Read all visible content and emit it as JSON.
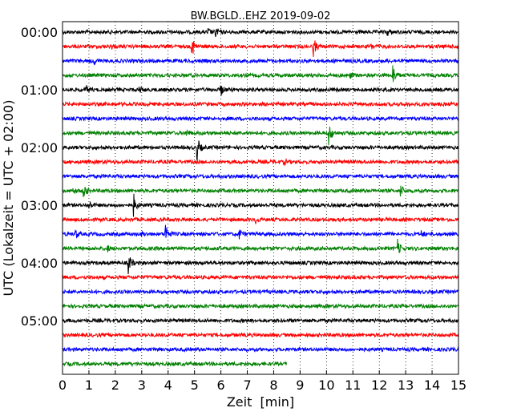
{
  "chart_data": {
    "type": "line",
    "subtype": "dayplot",
    "title": "BW.BGLD..EHZ 2019-09-02",
    "xlabel": "Zeit  [min]",
    "ylabel": "UTC (Lokalzeit = UTC + 02:00)",
    "xlim": [
      0,
      15
    ],
    "xticks": [
      "0",
      "1",
      "2",
      "3",
      "4",
      "5",
      "6",
      "7",
      "8",
      "9",
      "10",
      "11",
      "12",
      "13",
      "14",
      "15"
    ],
    "yticks": [
      "00:00",
      "01:00",
      "02:00",
      "03:00",
      "04:00",
      "05:00"
    ],
    "grid": "vertical-dotted",
    "minutes_per_line": 15,
    "colors": [
      "#000000",
      "#ff0000",
      "#0000ff",
      "#008000"
    ],
    "trace_count": 24,
    "last_trace_end_min": 8.5,
    "events": [
      {
        "trace": 0,
        "min": 5.5,
        "amp": 0.3
      },
      {
        "trace": 0,
        "min": 5.8,
        "amp": 0.5
      },
      {
        "trace": 0,
        "min": 12.3,
        "amp": 0.3
      },
      {
        "trace": 1,
        "min": 1.8,
        "amp": 0.3
      },
      {
        "trace": 1,
        "min": 4.9,
        "amp": 1.0
      },
      {
        "trace": 1,
        "min": 9.5,
        "amp": 0.9
      },
      {
        "trace": 1,
        "min": 11.7,
        "amp": 0.2
      },
      {
        "trace": 1,
        "min": 14.9,
        "amp": 0.3
      },
      {
        "trace": 2,
        "min": 1.2,
        "amp": 0.25
      },
      {
        "trace": 3,
        "min": 10.9,
        "amp": 0.2
      },
      {
        "trace": 3,
        "min": 12.5,
        "amp": 1.1
      },
      {
        "trace": 4,
        "min": 0.9,
        "amp": 0.3
      },
      {
        "trace": 4,
        "min": 2.9,
        "amp": 0.3
      },
      {
        "trace": 4,
        "min": 6.0,
        "amp": 0.5
      },
      {
        "trace": 7,
        "min": 4.7,
        "amp": 0.25
      },
      {
        "trace": 7,
        "min": 10.1,
        "amp": 1.0
      },
      {
        "trace": 8,
        "min": 5.1,
        "amp": 1.0
      },
      {
        "trace": 9,
        "min": 8.4,
        "amp": 0.2
      },
      {
        "trace": 11,
        "min": 0.4,
        "amp": 0.25
      },
      {
        "trace": 11,
        "min": 0.8,
        "amp": 0.7
      },
      {
        "trace": 11,
        "min": 12.8,
        "amp": 0.6
      },
      {
        "trace": 12,
        "min": 1.0,
        "amp": 0.4
      },
      {
        "trace": 12,
        "min": 2.7,
        "amp": 0.9
      },
      {
        "trace": 13,
        "min": 7.3,
        "amp": 0.3
      },
      {
        "trace": 14,
        "min": 0.5,
        "amp": 0.3
      },
      {
        "trace": 14,
        "min": 3.0,
        "amp": 0.2
      },
      {
        "trace": 14,
        "min": 3.9,
        "amp": 1.0
      },
      {
        "trace": 14,
        "min": 6.7,
        "amp": 0.4
      },
      {
        "trace": 14,
        "min": 13.6,
        "amp": 0.25
      },
      {
        "trace": 15,
        "min": 1.7,
        "amp": 0.25
      },
      {
        "trace": 15,
        "min": 12.7,
        "amp": 0.7
      },
      {
        "trace": 16,
        "min": 2.5,
        "amp": 0.9
      }
    ]
  }
}
